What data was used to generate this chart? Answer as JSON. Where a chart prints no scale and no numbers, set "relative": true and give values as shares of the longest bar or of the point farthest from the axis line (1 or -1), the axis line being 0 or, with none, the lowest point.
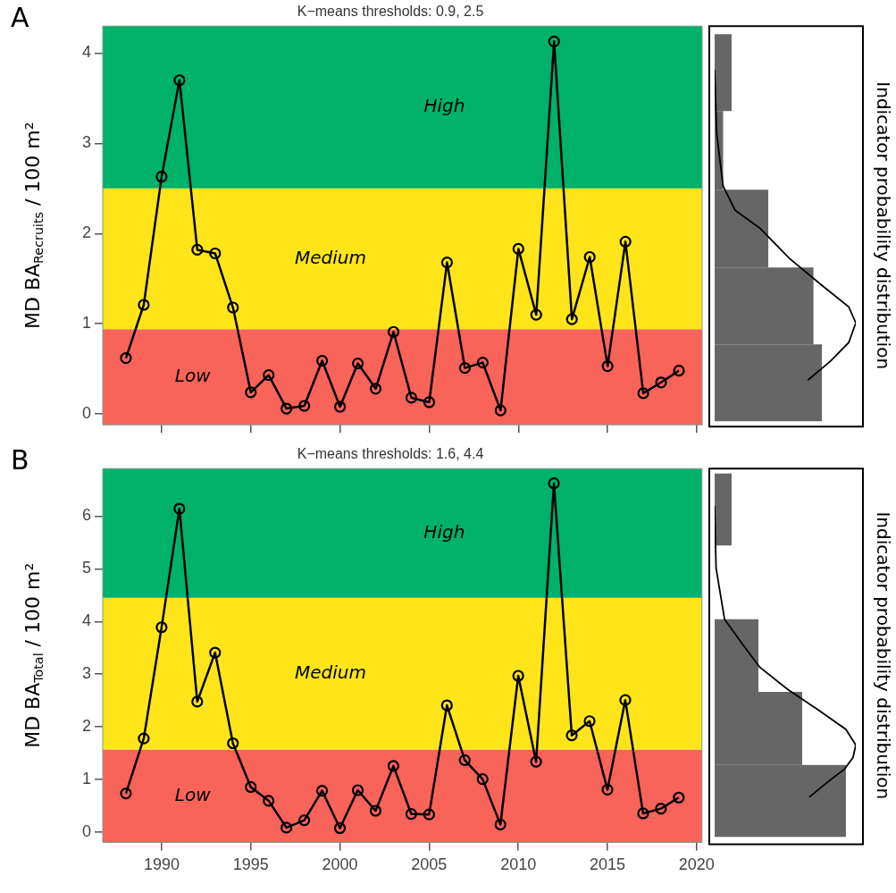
{
  "chart_data": [
    {
      "type": "line",
      "title": "K−means thresholds: 0.9, 2.5",
      "ylabel": "MD BA$_{Recruits}$ / 100 m²",
      "color": "#000000",
      "marker": "circle",
      "tick_labels": "y",
      "x": [
        1988,
        1989,
        1990,
        1991,
        1992,
        1993,
        1994,
        1995,
        1996,
        1997,
        1998,
        1999,
        2000,
        2001,
        2002,
        2003,
        2004,
        2005,
        2006,
        2007,
        2008,
        2009,
        2010,
        2011,
        2012,
        2013,
        2014,
        2015,
        2016,
        2017,
        2018,
        2019
      ],
      "values": [
        0.62,
        1.21,
        2.63,
        3.7,
        1.82,
        1.78,
        1.18,
        0.24,
        0.43,
        0.06,
        0.09,
        0.59,
        0.08,
        0.56,
        0.28,
        0.91,
        0.18,
        0.13,
        1.68,
        0.51,
        0.57,
        0.04,
        1.83,
        1.1,
        4.13,
        1.05,
        1.74,
        0.53,
        1.91,
        0.23,
        0.35,
        0.48
      ],
      "xlim": [
        1986.7,
        2020.3
      ],
      "xticks": [
        1990,
        1995,
        2000,
        2005,
        2010,
        2015,
        2020
      ],
      "ylim": [
        -0.12,
        4.3
      ],
      "yticks": [
        0,
        1,
        2,
        3,
        4
      ],
      "bands": [
        {
          "axis": "y",
          "from": -0.12,
          "to": 0.94,
          "color": "#f8635a",
          "label": "Low"
        },
        {
          "axis": "y",
          "from": 0.94,
          "to": 2.5,
          "color": "#fde51a",
          "label": "Medium"
        },
        {
          "axis": "y",
          "from": 2.5,
          "to": 4.3,
          "color": "#00b16a",
          "label": "High"
        }
      ],
      "annotations": [
        "A"
      ]
    },
    {
      "type": "histogram",
      "orientation": "horizontal",
      "relative": true,
      "tick_labels": false,
      "ylabel": "Indicator probability distribution",
      "color": "#666666",
      "bins": [
        -0.1,
        0.76,
        1.62,
        2.49,
        3.37,
        4.23
      ],
      "values": [
        0.76,
        0.7,
        0.38,
        0.06,
        0.12
      ],
      "ylim": [
        -0.12,
        4.3
      ],
      "series": [
        {
          "type": "line",
          "color": "#000000",
          "x": [
            3.83,
            3.11,
            2.53,
            2.26,
            2.06,
            1.72,
            1.42,
            1.18,
            1.0,
            0.78,
            0.57,
            0.36
          ],
          "values": [
            0,
            0.015,
            0.06,
            0.145,
            0.32,
            0.53,
            0.76,
            0.95,
            1,
            0.95,
            0.82,
            0.66
          ]
        }
      ]
    },
    {
      "type": "line",
      "title": "K−means thresholds: 1.6, 4.4",
      "ylabel": "MD BA$_{Total}$ / 100 m²",
      "color": "#000000",
      "marker": "circle",
      "x": [
        1988,
        1989,
        1990,
        1991,
        1992,
        1993,
        1994,
        1995,
        1996,
        1997,
        1998,
        1999,
        2000,
        2001,
        2002,
        2003,
        2004,
        2005,
        2006,
        2007,
        2008,
        2009,
        2010,
        2011,
        2012,
        2013,
        2014,
        2015,
        2016,
        2017,
        2018,
        2019
      ],
      "values": [
        0.74,
        1.78,
        3.89,
        6.14,
        2.48,
        3.41,
        1.69,
        0.86,
        0.6,
        0.09,
        0.23,
        0.79,
        0.08,
        0.8,
        0.41,
        1.26,
        0.35,
        0.34,
        2.41,
        1.37,
        1.01,
        0.15,
        2.97,
        1.34,
        6.62,
        1.84,
        2.11,
        0.81,
        2.51,
        0.36,
        0.45,
        0.66
      ],
      "xlim": [
        1986.7,
        2020.3
      ],
      "xticks": [
        1990,
        1995,
        2000,
        2005,
        2010,
        2015,
        2020
      ],
      "ylim": [
        -0.19,
        6.9
      ],
      "yticks": [
        0,
        1,
        2,
        3,
        4,
        5,
        6
      ],
      "bands": [
        {
          "axis": "y",
          "from": -0.19,
          "to": 1.57,
          "color": "#f8635a",
          "label": "Low"
        },
        {
          "axis": "y",
          "from": 1.57,
          "to": 4.45,
          "color": "#fde51a",
          "label": "Medium"
        },
        {
          "axis": "y",
          "from": 4.45,
          "to": 6.9,
          "color": "#00b16a",
          "label": "High"
        }
      ],
      "annotations": [
        "B"
      ]
    },
    {
      "type": "histogram",
      "orientation": "horizontal",
      "relative": true,
      "tick_labels": false,
      "ylabel": "Indicator probability distribution",
      "color": "#666666",
      "bins": [
        -0.12,
        1.26,
        2.66,
        4.05,
        5.46,
        6.84
      ],
      "values": [
        0.93,
        0.62,
        0.31,
        0,
        0.12
      ],
      "ylim": [
        -0.19,
        6.9
      ],
      "series": [
        {
          "type": "line",
          "color": "#000000",
          "x": [
            6.22,
            5.03,
            4.05,
            3.56,
            3.13,
            2.7,
            2.32,
            1.94,
            1.64,
            1.4,
            1.18,
            0.91,
            0.64
          ],
          "values": [
            0,
            0.01,
            0.07,
            0.2,
            0.32,
            0.52,
            0.73,
            0.93,
            1,
            0.98,
            0.92,
            0.79,
            0.67
          ]
        }
      ]
    }
  ]
}
